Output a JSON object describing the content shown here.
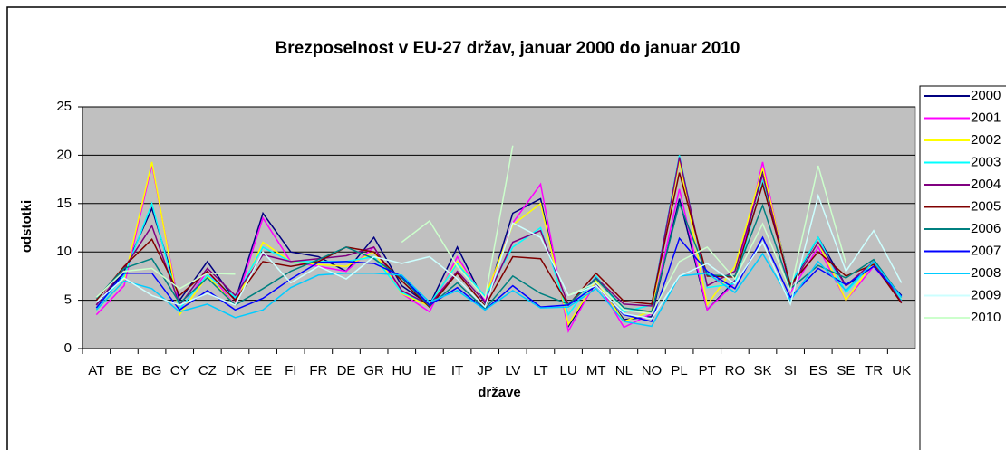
{
  "chart_data": {
    "type": "line",
    "title": "Brezposelnost v EU-27 držav, januar 2000 do januar 2010",
    "x_label": "države",
    "y_label": "odstotki",
    "categories": [
      "AT",
      "BE",
      "BG",
      "CY",
      "CZ",
      "DK",
      "EE",
      "FI",
      "FR",
      "DE",
      "GR",
      "HU",
      "IE",
      "IT",
      "JP",
      "LV",
      "LT",
      "LU",
      "MT",
      "NL",
      "NO",
      "PL",
      "PT",
      "RO",
      "SK",
      "SI",
      "ES",
      "SE",
      "TR",
      "UK"
    ],
    "ylim": [
      0,
      25
    ],
    "yticks": [
      0,
      5,
      10,
      15,
      20,
      25
    ],
    "grid": true,
    "series": [
      {
        "name": "2000",
        "color": "#000080",
        "values": [
          4.5,
          8,
          14.5,
          5,
          9,
          5,
          14,
          10,
          9.5,
          8,
          11.5,
          6.5,
          4.5,
          10.5,
          4.7,
          14,
          15.5,
          2.3,
          6.8,
          3,
          3.3,
          15.5,
          4,
          7,
          18.5,
          6.5,
          11.5,
          6.5,
          8.5,
          5.5
        ]
      },
      {
        "name": "2001",
        "color": "#ff00ff",
        "values": [
          3.5,
          6.5,
          19,
          4,
          8,
          4.5,
          13.5,
          9,
          8.5,
          8,
          10.5,
          5.7,
          3.8,
          9.5,
          5,
          13,
          17,
          1.8,
          7,
          2.2,
          3.6,
          16.5,
          4,
          6.8,
          19.3,
          5.8,
          10.5,
          5,
          8.5,
          5
        ]
      },
      {
        "name": "2002",
        "color": "#ffff00",
        "values": [
          4,
          7,
          19.3,
          3.5,
          7.5,
          4.5,
          11,
          9,
          8.7,
          8.5,
          10,
          5.7,
          4.4,
          9,
          5.3,
          12.8,
          15,
          2.5,
          7,
          2.8,
          3.9,
          19.5,
          4.5,
          8.5,
          18.7,
          6.3,
          11,
          5,
          9,
          5
        ]
      },
      {
        "name": "2003",
        "color": "#00ffff",
        "values": [
          4.2,
          7.5,
          15,
          4.1,
          7.6,
          5.3,
          10.5,
          9,
          9,
          9,
          9.5,
          5.8,
          4.6,
          8.8,
          5.4,
          10.5,
          12.5,
          3.5,
          7.5,
          3.8,
          4.5,
          20,
          6.3,
          6.7,
          17.3,
          6.7,
          11.5,
          5.8,
          9,
          5
        ]
      },
      {
        "name": "2004",
        "color": "#800080",
        "values": [
          4.5,
          8.3,
          12.7,
          4.5,
          8.3,
          5.5,
          9.7,
          9,
          9.3,
          9.6,
          10.5,
          6,
          4.5,
          8,
          4.8,
          11,
          12.2,
          4.5,
          7.3,
          4.6,
          4.4,
          19.8,
          6.5,
          8,
          18,
          6.3,
          11,
          6.5,
          9,
          4.8
        ]
      },
      {
        "name": "2005",
        "color": "#800000",
        "values": [
          5,
          8.5,
          11.3,
          5.5,
          8,
          5,
          9,
          8.5,
          9,
          10.5,
          10,
          7,
          4.3,
          7.8,
          4.4,
          9.5,
          9.3,
          4.5,
          7.8,
          4.9,
          4.6,
          18.2,
          7.5,
          7.4,
          17,
          6.6,
          10,
          7.5,
          8.7,
          4.7
        ]
      },
      {
        "name": "2006",
        "color": "#008080",
        "values": [
          5.2,
          8.3,
          9.3,
          4.7,
          7.3,
          4.5,
          6.2,
          8,
          9.2,
          10.5,
          9.3,
          7.3,
          4.4,
          6.8,
          4.1,
          7.5,
          5.7,
          4.6,
          7.2,
          4.2,
          3.8,
          15,
          7.6,
          7.5,
          14.8,
          6.2,
          8.6,
          7.3,
          9.2,
          5.3
        ]
      },
      {
        "name": "2007",
        "color": "#0000ff",
        "values": [
          4.2,
          7.8,
          7.8,
          4,
          6,
          4,
          5.2,
          7.2,
          8.9,
          9,
          8.8,
          7.5,
          4.5,
          6.3,
          4,
          6.5,
          4.3,
          4.5,
          6.5,
          3.5,
          2.8,
          11.4,
          8,
          6.2,
          11.5,
          5.3,
          8.3,
          6.6,
          8.5,
          5.4
        ]
      },
      {
        "name": "2008",
        "color": "#00ccff",
        "values": [
          4,
          7,
          6.2,
          3.8,
          4.6,
          3.2,
          4,
          6.3,
          7.6,
          7.8,
          7.8,
          7.6,
          4.8,
          6,
          4,
          6,
          4.2,
          4.3,
          6.2,
          2.8,
          2.3,
          7.5,
          7.8,
          5.8,
          9.8,
          5,
          9,
          6,
          9,
          5.3
        ]
      },
      {
        "name": "2009",
        "color": "#ccffff",
        "values": [
          4.8,
          7.3,
          5.5,
          4.5,
          5.7,
          4.5,
          10,
          6.8,
          8.5,
          7.2,
          9.5,
          8.8,
          9.5,
          7.2,
          4.3,
          13,
          11.5,
          5.5,
          6.5,
          3.6,
          3.1,
          7.5,
          8.8,
          6.7,
          11,
          4.6,
          15.8,
          8,
          12.2,
          6.8
        ]
      },
      {
        "name": "2010",
        "color": "#ccffcc",
        "values": [
          5.3,
          8,
          8.3,
          6.2,
          7.8,
          7.7,
          null,
          null,
          null,
          null,
          null,
          11,
          13.2,
          8.5,
          5.2,
          21,
          null,
          5.5,
          6.8,
          4,
          3.6,
          9,
          10.5,
          7.2,
          12.9,
          6,
          18.9,
          8.8,
          null,
          null
        ]
      }
    ]
  }
}
